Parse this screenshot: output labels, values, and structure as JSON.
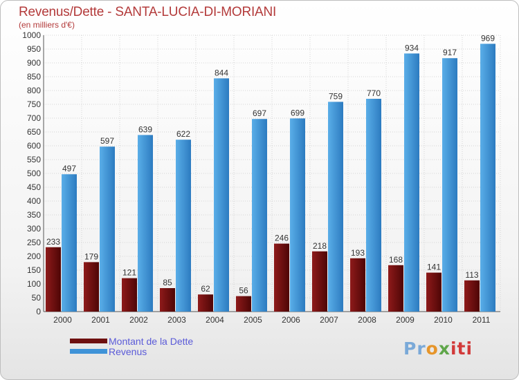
{
  "title": "Revenus/Dette - SANTA-LUCIA-DI-MORIANI",
  "subtitle": "(en milliers d'€)",
  "logo": {
    "p1": "Pr",
    "p2": "o",
    "p3": "x",
    "p4": "iti"
  },
  "colors": {
    "dette": "#6e0f0f",
    "revenus": "#3f93d8"
  },
  "chart_data": {
    "type": "bar",
    "title": "Revenus/Dette - SANTA-LUCIA-DI-MORIANI",
    "subtitle": "(en milliers d'€)",
    "categories": [
      "2000",
      "2001",
      "2002",
      "2003",
      "2004",
      "2005",
      "2006",
      "2007",
      "2008",
      "2009",
      "2010",
      "2011"
    ],
    "series": [
      {
        "name": "Montant de la Dette",
        "values": [
          233,
          179,
          121,
          85,
          62,
          56,
          246,
          218,
          193,
          168,
          141,
          113
        ]
      },
      {
        "name": "Revenus",
        "values": [
          497,
          597,
          639,
          622,
          844,
          697,
          699,
          759,
          770,
          934,
          917,
          969
        ]
      }
    ],
    "ylim": [
      0,
      1000
    ],
    "yticks": [
      0,
      50,
      100,
      150,
      200,
      250,
      300,
      350,
      400,
      450,
      500,
      550,
      600,
      650,
      700,
      750,
      800,
      850,
      900,
      950,
      1000
    ],
    "grid": true,
    "legend_position": "bottom-left"
  }
}
